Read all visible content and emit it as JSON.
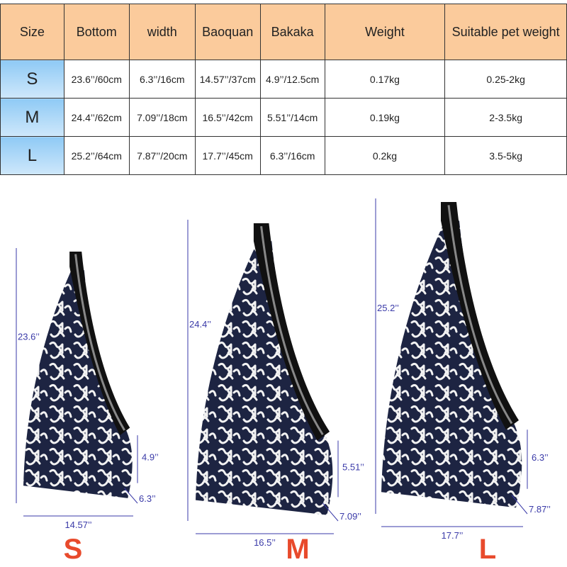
{
  "table": {
    "header": [
      "Size",
      "Bottom",
      "width",
      "Baoquan",
      "Bakaka",
      "Weight",
      "Suitable pet weight"
    ],
    "rows": [
      [
        "S",
        "23.6’’/60cm",
        "6.3’’/16cm",
        "14.57’’/37cm",
        "4.9’’/12.5cm",
        "0.17kg",
        "0.25-2kg"
      ],
      [
        "M",
        "24.4’’/62cm",
        "7.09’’/18cm",
        "16.5’’/42cm",
        "5.51’’/14cm",
        "0.19kg",
        "2-3.5kg"
      ],
      [
        "L",
        "25.2’’/64cm",
        "7.87’’/20cm",
        "17.7’’/45cm",
        "6.3’’/16cm",
        "0.2kg",
        "3.5-5kg"
      ]
    ]
  },
  "bags": [
    {
      "size": "S",
      "height": "23.6’’",
      "bakaka": "4.9’’",
      "width": "6.3’’",
      "bottom": "14.57’’"
    },
    {
      "size": "M",
      "height": "24.4’’",
      "bakaka": "5.51’’",
      "width": "7.09’’",
      "bottom": "16.5’’"
    },
    {
      "size": "L",
      "height": "25.2’’",
      "bakaka": "6.3’’",
      "width": "7.87’’",
      "bottom": "17.7’’"
    }
  ]
}
